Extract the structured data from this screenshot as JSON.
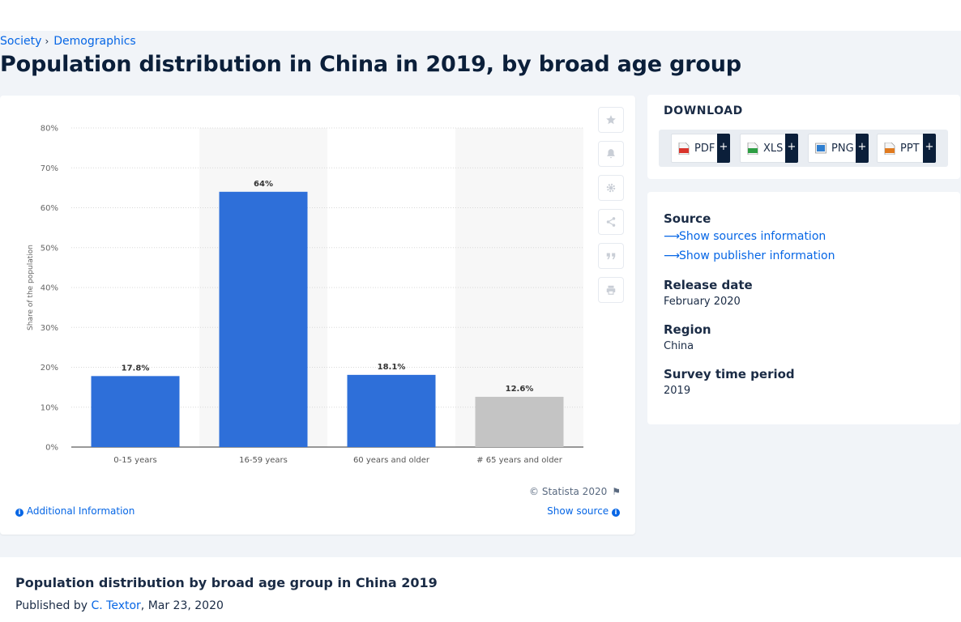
{
  "breadcrumb": {
    "items": [
      "Society",
      "Demographics"
    ],
    "separator": "›"
  },
  "page_title": "Population distribution in China in 2019, by broad age group",
  "chart_data": {
    "type": "bar",
    "categories": [
      "0-15 years",
      "16-59 years",
      "60 years and older",
      "# 65 years and older"
    ],
    "values": [
      17.8,
      64,
      18.1,
      12.6
    ],
    "data_labels": [
      "17.8%",
      "64%",
      "18.1%",
      "12.6%"
    ],
    "bar_colors": [
      "#2e6fd9",
      "#2e6fd9",
      "#2e6fd9",
      "#c4c4c4"
    ],
    "title": "",
    "xlabel": "",
    "ylabel": "Share of the population",
    "ylim": [
      0,
      80
    ],
    "yticks": [
      0,
      10,
      20,
      30,
      40,
      50,
      60,
      70,
      80
    ],
    "ytick_labels": [
      "0%",
      "10%",
      "20%",
      "30%",
      "40%",
      "50%",
      "60%",
      "70%",
      "80%"
    ],
    "grid": true,
    "legend": "none"
  },
  "chart_tools": [
    "star-icon",
    "bell-icon",
    "gear-icon",
    "share-icon",
    "quote-icon",
    "print-icon"
  ],
  "chart_footer": {
    "copyright": "© Statista 2020",
    "additional_info": "Additional Information",
    "show_source": "Show source"
  },
  "download": {
    "title": "DOWNLOAD",
    "buttons": [
      {
        "label": "PDF",
        "plus": "+",
        "icon": "pdf-file-icon",
        "color": "#d9342b"
      },
      {
        "label": "XLS",
        "plus": "+",
        "icon": "xls-file-icon",
        "color": "#2e9e44"
      },
      {
        "label": "PNG",
        "plus": "+",
        "icon": "png-file-icon",
        "color": "#2f7fd1"
      },
      {
        "label": "PPT",
        "plus": "+",
        "icon": "ppt-file-icon",
        "color": "#e07a1f"
      }
    ]
  },
  "info": {
    "source_label": "Source",
    "show_sources": "Show sources information",
    "show_publisher": "Show publisher information",
    "release_label": "Release date",
    "release_value": "February 2020",
    "region_label": "Region",
    "region_value": "China",
    "period_label": "Survey time period",
    "period_value": "2019"
  },
  "bottom": {
    "title": "Population distribution by broad age group in China 2019",
    "published_prefix": "Published by",
    "author": "C. Textor",
    "date": ", Mar 23, 2020"
  }
}
